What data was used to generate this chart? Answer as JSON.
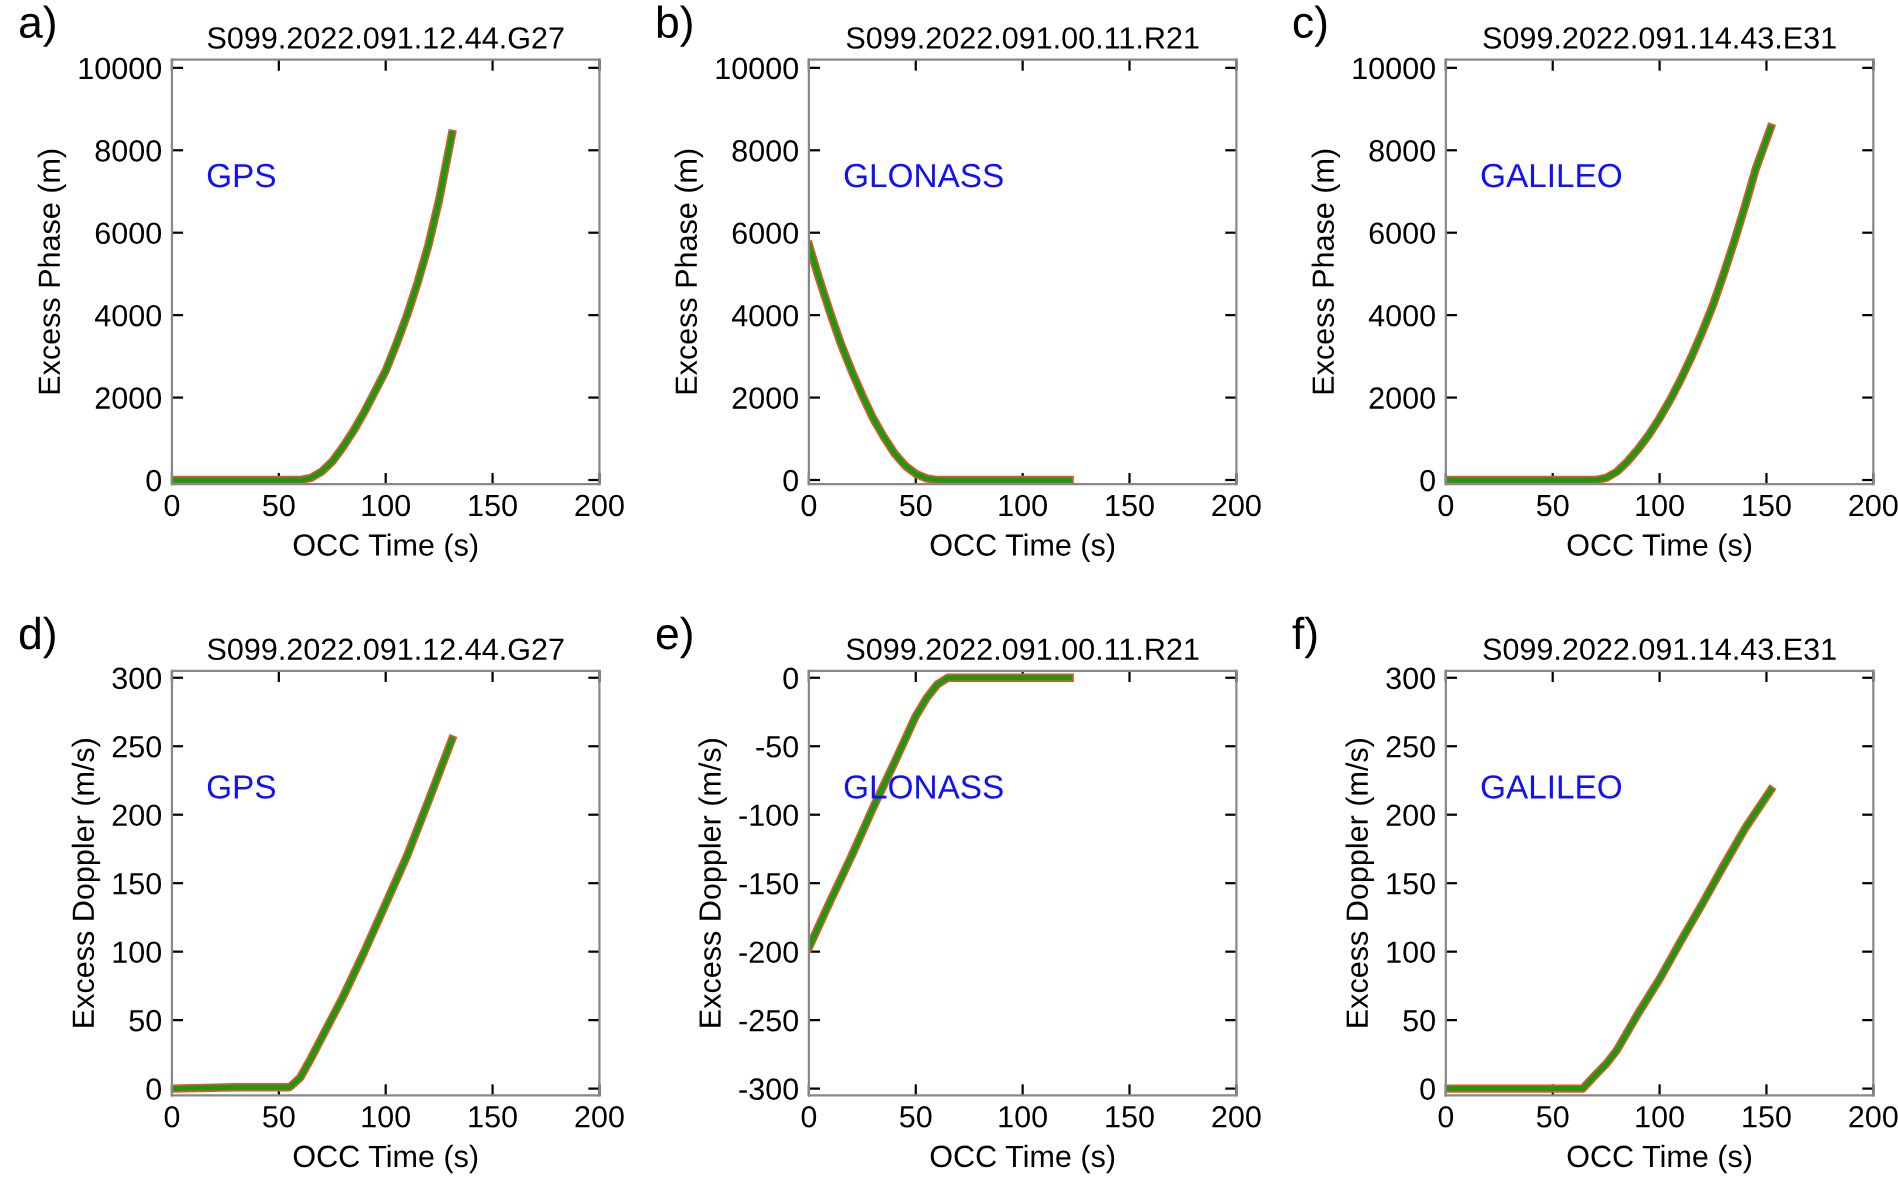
{
  "chart_data": [
    {
      "type": "line",
      "title": "S099.2022.091.12.44.G27",
      "xlabel": "OCC Time (s)",
      "ylabel": "Excess Phase (m)",
      "annotations": [
        "a)",
        "GPS"
      ],
      "xlim": [
        0,
        200
      ],
      "xticks": [
        0,
        50,
        100,
        150,
        200
      ],
      "ylim": [
        -100,
        10200
      ],
      "yticks": [
        0,
        2000,
        4000,
        6000,
        8000,
        10000
      ],
      "grid": false,
      "legend": false,
      "series": [
        {
          "color": "#e0562a",
          "x": [
            0,
            30,
            60,
            65,
            70,
            75,
            80,
            85,
            90,
            95,
            100,
            105,
            110,
            115,
            120,
            125,
            131
          ],
          "values": [
            0,
            0,
            0,
            50,
            200,
            450,
            800,
            1200,
            1650,
            2150,
            2650,
            3300,
            4000,
            4800,
            5700,
            6800,
            8400
          ]
        },
        {
          "color": "#1a9a10",
          "x": [
            0,
            30,
            60,
            65,
            70,
            75,
            80,
            85,
            90,
            95,
            100,
            105,
            110,
            115,
            120,
            125,
            131
          ],
          "values": [
            0,
            0,
            0,
            50,
            200,
            450,
            800,
            1200,
            1650,
            2150,
            2650,
            3300,
            4000,
            4800,
            5700,
            6800,
            8400
          ]
        }
      ]
    },
    {
      "type": "line",
      "title": "S099.2022.091.00.11.R21",
      "xlabel": "OCC Time (s)",
      "ylabel": "Excess Phase (m)",
      "annotations": [
        "b)",
        "GLONASS"
      ],
      "xlim": [
        0,
        200
      ],
      "xticks": [
        0,
        50,
        100,
        150,
        200
      ],
      "ylim": [
        -100,
        10200
      ],
      "yticks": [
        0,
        2000,
        4000,
        6000,
        8000,
        10000
      ],
      "grid": false,
      "legend": false,
      "series": [
        {
          "color": "#e0562a",
          "x": [
            0,
            5,
            10,
            15,
            20,
            25,
            30,
            35,
            40,
            45,
            50,
            55,
            60,
            90,
            122
          ],
          "values": [
            5700,
            4850,
            4050,
            3300,
            2650,
            2050,
            1500,
            1050,
            650,
            350,
            150,
            40,
            0,
            0,
            0
          ]
        },
        {
          "color": "#1a9a10",
          "x": [
            0,
            5,
            10,
            15,
            20,
            25,
            30,
            35,
            40,
            45,
            50,
            55,
            60,
            90,
            122
          ],
          "values": [
            5700,
            4850,
            4050,
            3300,
            2650,
            2050,
            1500,
            1050,
            650,
            350,
            150,
            40,
            0,
            0,
            0
          ]
        }
      ]
    },
    {
      "type": "line",
      "title": "S099.2022.091.14.43.E31",
      "xlabel": "OCC Time (s)",
      "ylabel": "Excess Phase (m)",
      "annotations": [
        "c)",
        "GALILEO"
      ],
      "xlim": [
        0,
        200
      ],
      "xticks": [
        0,
        50,
        100,
        150,
        200
      ],
      "ylim": [
        -100,
        10200
      ],
      "yticks": [
        0,
        2000,
        4000,
        6000,
        8000,
        10000
      ],
      "grid": false,
      "legend": false,
      "series": [
        {
          "color": "#e0562a",
          "x": [
            0,
            35,
            70,
            75,
            80,
            85,
            90,
            95,
            100,
            105,
            110,
            115,
            120,
            125,
            130,
            135,
            140,
            145,
            152
          ],
          "values": [
            0,
            0,
            0,
            50,
            200,
            450,
            750,
            1100,
            1500,
            1950,
            2450,
            3000,
            3600,
            4250,
            5000,
            5800,
            6650,
            7550,
            8550
          ]
        },
        {
          "color": "#1a9a10",
          "x": [
            0,
            35,
            70,
            75,
            80,
            85,
            90,
            95,
            100,
            105,
            110,
            115,
            120,
            125,
            130,
            135,
            140,
            145,
            152
          ],
          "values": [
            0,
            0,
            0,
            50,
            200,
            450,
            750,
            1100,
            1500,
            1950,
            2450,
            3000,
            3600,
            4250,
            5000,
            5800,
            6650,
            7550,
            8550
          ]
        }
      ]
    },
    {
      "type": "line",
      "title": "S099.2022.091.12.44.G27",
      "xlabel": "OCC Time (s)",
      "ylabel": "Excess Doppler (m/s)",
      "annotations": [
        "d)",
        "GPS"
      ],
      "xlim": [
        0,
        200
      ],
      "xticks": [
        0,
        50,
        100,
        150,
        200
      ],
      "ylim": [
        -5,
        305
      ],
      "yticks": [
        0,
        50,
        100,
        150,
        200,
        250,
        300
      ],
      "grid": false,
      "legend": false,
      "series": [
        {
          "color": "#e0562a",
          "x": [
            0,
            30,
            55,
            60,
            65,
            70,
            75,
            80,
            90,
            100,
            110,
            120,
            131
          ],
          "values": [
            0,
            1,
            1,
            8,
            22,
            37,
            52,
            67,
            100,
            135,
            170,
            210,
            255
          ]
        },
        {
          "color": "#1a9a10",
          "x": [
            0,
            30,
            55,
            60,
            65,
            70,
            75,
            80,
            90,
            100,
            110,
            120,
            131
          ],
          "values": [
            0,
            1,
            1,
            8,
            22,
            37,
            52,
            67,
            100,
            135,
            170,
            210,
            255
          ]
        }
      ]
    },
    {
      "type": "line",
      "title": "S099.2022.091.00.11.R21",
      "xlabel": "OCC Time (s)",
      "ylabel": "Excess Doppler (m/s)",
      "annotations": [
        "e)",
        "GLONASS"
      ],
      "xlim": [
        0,
        200
      ],
      "xticks": [
        0,
        50,
        100,
        150,
        200
      ],
      "ylim": [
        -305,
        5
      ],
      "yticks": [
        -300,
        -250,
        -200,
        -150,
        -100,
        -50,
        0
      ],
      "grid": false,
      "legend": false,
      "series": [
        {
          "color": "#e0562a",
          "x": [
            0,
            10,
            20,
            30,
            40,
            50,
            55,
            60,
            65,
            90,
            122
          ],
          "values": [
            -197,
            -163,
            -130,
            -95,
            -62,
            -28,
            -15,
            -5,
            0,
            0,
            0
          ]
        },
        {
          "color": "#1a9a10",
          "x": [
            0,
            10,
            20,
            30,
            40,
            50,
            55,
            60,
            65,
            90,
            122
          ],
          "values": [
            -197,
            -163,
            -130,
            -95,
            -62,
            -28,
            -15,
            -5,
            0,
            0,
            0
          ]
        }
      ]
    },
    {
      "type": "line",
      "title": "S099.2022.091.14.43.E31",
      "xlabel": "OCC Time (s)",
      "ylabel": "Excess Doppler (m/s)",
      "annotations": [
        "f)",
        "GALILEO"
      ],
      "xlim": [
        0,
        200
      ],
      "xticks": [
        0,
        50,
        100,
        150,
        200
      ],
      "ylim": [
        -5,
        305
      ],
      "yticks": [
        0,
        50,
        100,
        150,
        200,
        250,
        300
      ],
      "grid": false,
      "legend": false,
      "series": [
        {
          "color": "#e0562a",
          "x": [
            0,
            30,
            64,
            70,
            75,
            80,
            90,
            100,
            110,
            120,
            130,
            140,
            152
          ],
          "values": [
            0,
            0,
            0,
            10,
            18,
            28,
            55,
            80,
            108,
            135,
            163,
            190,
            218
          ]
        },
        {
          "color": "#1a9a10",
          "x": [
            0,
            30,
            64,
            70,
            75,
            80,
            90,
            100,
            110,
            120,
            130,
            140,
            152
          ],
          "values": [
            0,
            0,
            0,
            10,
            18,
            28,
            55,
            80,
            108,
            135,
            163,
            190,
            218
          ]
        }
      ]
    }
  ]
}
